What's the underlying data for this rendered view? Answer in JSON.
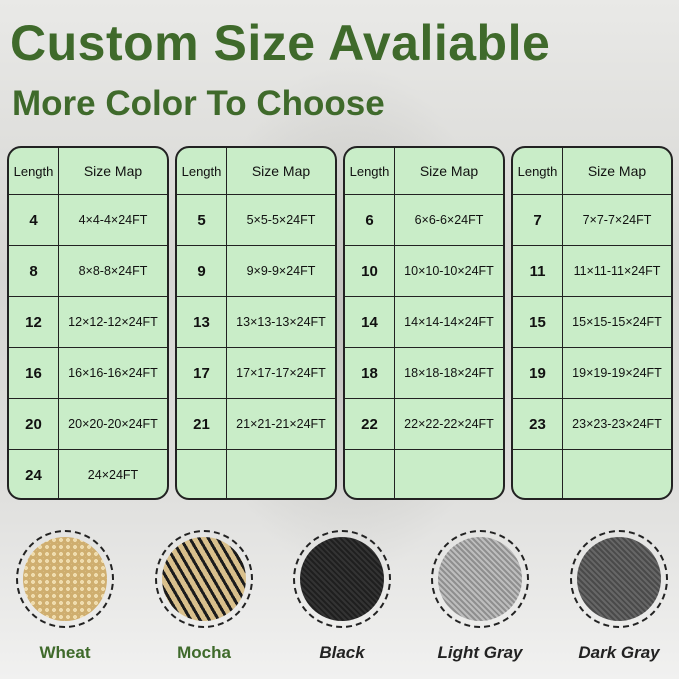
{
  "title": "Custom Size Avaliable",
  "subtitle": "More Color To Choose",
  "table_headers": {
    "length": "Length",
    "size_map": "Size Map"
  },
  "tables": [
    {
      "rows": [
        [
          "4",
          "4×4-4×24FT"
        ],
        [
          "8",
          "8×8-8×24FT"
        ],
        [
          "12",
          "12×12-12×24FT"
        ],
        [
          "16",
          "16×16-16×24FT"
        ],
        [
          "20",
          "20×20-20×24FT"
        ],
        [
          "24",
          "24×24FT"
        ]
      ]
    },
    {
      "rows": [
        [
          "5",
          "5×5-5×24FT"
        ],
        [
          "9",
          "9×9-9×24FT"
        ],
        [
          "13",
          "13×13-13×24FT"
        ],
        [
          "17",
          "17×17-17×24FT"
        ],
        [
          "21",
          "21×21-21×24FT"
        ],
        [
          "",
          ""
        ]
      ]
    },
    {
      "rows": [
        [
          "6",
          "6×6-6×24FT"
        ],
        [
          "10",
          "10×10-10×24FT"
        ],
        [
          "14",
          "14×14-14×24FT"
        ],
        [
          "18",
          "18×18-18×24FT"
        ],
        [
          "22",
          "22×22-22×24FT"
        ],
        [
          "",
          ""
        ]
      ]
    },
    {
      "rows": [
        [
          "7",
          "7×7-7×24FT"
        ],
        [
          "11",
          "11×11-11×24FT"
        ],
        [
          "15",
          "15×15-15×24FT"
        ],
        [
          "19",
          "19×19-19×24FT"
        ],
        [
          "23",
          "23×23-23×24FT"
        ],
        [
          "",
          ""
        ]
      ]
    }
  ],
  "colors": [
    {
      "name": "Wheat",
      "swatch": "#dcc08a",
      "label_color": "#3f6a2b",
      "italic": false
    },
    {
      "name": "Mocha",
      "swatch": "#8a7a5a",
      "label_color": "#3f6a2b",
      "italic": false
    },
    {
      "name": "Black",
      "swatch": "#2a2a2a",
      "label_color": "#222222",
      "italic": true
    },
    {
      "name": "Light Gray",
      "swatch": "#a9a9a9",
      "label_color": "#222222",
      "italic": true
    },
    {
      "name": "Dark Gray",
      "swatch": "#5a5a5a",
      "label_color": "#222222",
      "italic": true
    }
  ]
}
